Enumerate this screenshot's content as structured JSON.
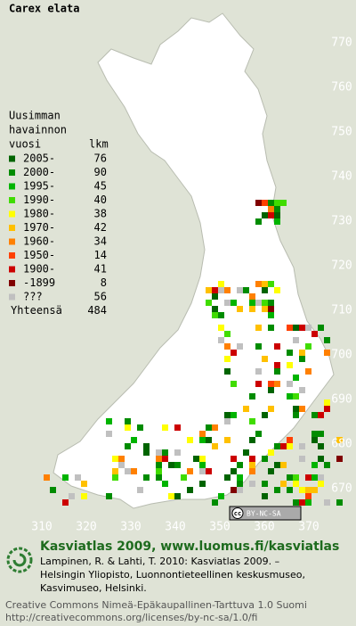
{
  "title": "Carex elata",
  "legend": {
    "heading": [
      "Uusimman",
      "havainnon",
      "vuosi"
    ],
    "count_heading": "lkm",
    "items": [
      {
        "label": "2005-",
        "count": 76,
        "color": "#006400"
      },
      {
        "label": "2000-",
        "count": 90,
        "color": "#008c00"
      },
      {
        "label": "1995-",
        "count": 45,
        "color": "#00b400"
      },
      {
        "label": "1990-",
        "count": 40,
        "color": "#40dc00"
      },
      {
        "label": "1980-",
        "count": 38,
        "color": "#ffff00"
      },
      {
        "label": "1970-",
        "count": 42,
        "color": "#ffc000"
      },
      {
        "label": "1960-",
        "count": 34,
        "color": "#ff8000"
      },
      {
        "label": "1950-",
        "count": 14,
        "color": "#ff4000"
      },
      {
        "label": "1900-",
        "count": 41,
        "color": "#cc0000"
      },
      {
        "label": "-1899",
        "count": 8,
        "color": "#800000"
      },
      {
        "label": "???",
        "count": 56,
        "color": "#c0c0c0"
      }
    ],
    "total_label": "Yhteensä",
    "total": 484
  },
  "grid": {
    "northing": [
      770,
      760,
      750,
      740,
      730,
      720,
      710,
      700,
      690,
      680,
      670
    ],
    "easting": [
      310,
      320,
      330,
      340,
      350,
      360,
      370
    ]
  },
  "badge": {
    "icon": "cc",
    "text": "BY-NC-SA"
  },
  "footer": {
    "site": "Kasviatlas 2009, www.luomus.fi/kasviatlas",
    "citation": [
      "Lampinen, R. & Lahti, T. 2010: Kasviatlas 2009. –",
      "Helsingin Yliopisto, Luonnontieteellinen keskusmuseo,",
      "Kasvimuseo, Helsinki."
    ],
    "license": [
      "Creative Commons Nimeä-Epäkaupallinen-Tarttuva 1.0 Suomi",
      "http://creativecommons.org/licenses/by-nc-sa/1.0/fi"
    ]
  }
}
